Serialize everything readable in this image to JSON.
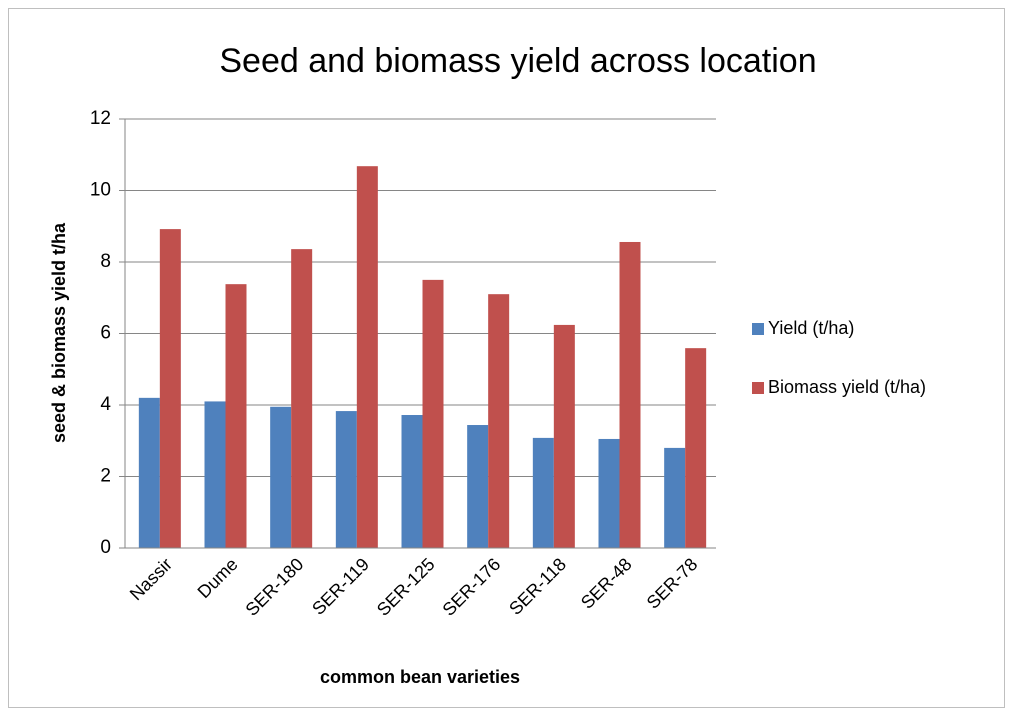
{
  "chart_data": {
    "type": "bar",
    "title": "Seed and  biomass yield across location",
    "x_label": "common bean varieties",
    "y_label": "seed & biomass yield t/ha",
    "categories": [
      "Nassir",
      "Dume",
      "SER-180",
      "SER-119",
      "SER-125",
      "SER-176",
      "SER-118",
      "SER-48",
      "SER-78"
    ],
    "series": [
      {
        "name": "Yield  (t/ha)",
        "color": "#4f81bd",
        "values": [
          4.2,
          4.1,
          3.95,
          3.83,
          3.72,
          3.44,
          3.08,
          3.05,
          2.8
        ]
      },
      {
        "name": "Biomass yield  (t/ha)",
        "color": "#c0504d",
        "values": [
          8.92,
          7.38,
          8.36,
          10.68,
          7.5,
          7.1,
          6.24,
          8.56,
          5.59
        ]
      }
    ],
    "ylim": [
      0,
      12
    ],
    "yticks": [
      0,
      2,
      4,
      6,
      8,
      10,
      12
    ],
    "grid": true,
    "legend": "right"
  }
}
